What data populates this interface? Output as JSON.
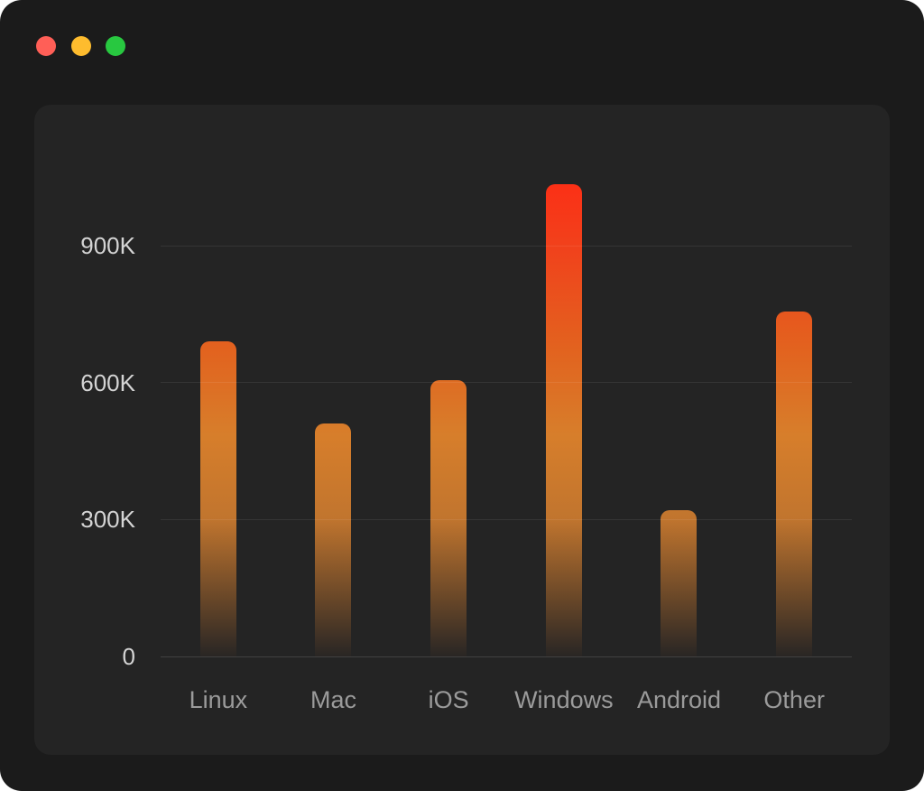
{
  "window": {
    "controls": [
      {
        "name": "close",
        "color": "#ff5f57"
      },
      {
        "name": "minimize",
        "color": "#febc2e"
      },
      {
        "name": "zoom",
        "color": "#28c840"
      }
    ]
  },
  "colors": {
    "window_background": "#1b1b1b",
    "panel_background": "#242424",
    "grid_line": "rgba(255,255,255,0.08)",
    "axis_line": "rgba(255,255,255,0.14)",
    "y_tick_label": "#d4d4d4",
    "x_tick_label": "#9b9b9b",
    "bar_top": "#ff2a14",
    "bar_mid": "#d77e2b"
  },
  "chart_data": {
    "type": "bar",
    "categories": [
      "Linux",
      "Mac",
      "iOS",
      "Windows",
      "Android",
      "Other"
    ],
    "values": [
      690000,
      510000,
      605000,
      1035000,
      320000,
      755000
    ],
    "title": "",
    "xlabel": "",
    "ylabel": "",
    "ylim": [
      0,
      1080000
    ],
    "yticks": [
      {
        "value": 0,
        "label": "0"
      },
      {
        "value": 300000,
        "label": "300K"
      },
      {
        "value": 600000,
        "label": "600K"
      },
      {
        "value": 900000,
        "label": "900K"
      }
    ],
    "grid": true,
    "legend": "none",
    "bar_gradient": [
      {
        "color": "#ff2a14",
        "pos": "0%"
      },
      {
        "color": "#f0431c",
        "pos": "18%"
      },
      {
        "color": "#e2631f",
        "pos": "38%"
      },
      {
        "color": "#d77e2b",
        "pos": "55%"
      },
      {
        "color": "#c1752e",
        "pos": "72%"
      },
      {
        "color": "rgba(120,70,40,0.05)",
        "pos": "100%"
      }
    ]
  }
}
